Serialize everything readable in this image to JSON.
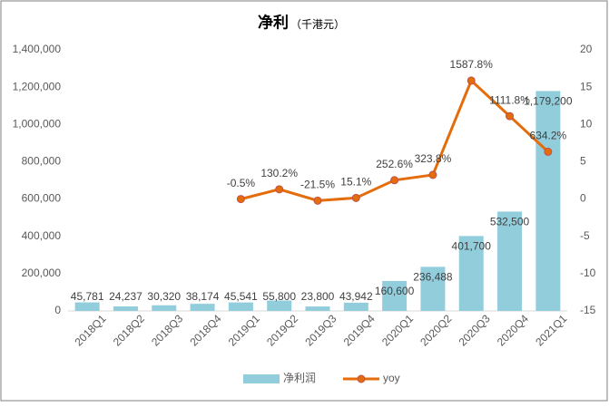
{
  "chart_data": {
    "type": "bar_line",
    "title": "净利",
    "subtitle": "（千港元）",
    "categories": [
      "2018Q1",
      "2018Q2",
      "2018Q3",
      "2018Q4",
      "2019Q1",
      "2019Q2",
      "2019Q3",
      "2019Q4",
      "2020Q1",
      "2020Q2",
      "2020Q3",
      "2020Q4",
      "2021Q1"
    ],
    "series": [
      {
        "name": "净利润",
        "type": "bar",
        "color": "#92cddc",
        "values": [
          45781,
          24237,
          30320,
          38174,
          45541,
          55800,
          23800,
          43942,
          160600,
          236488,
          401700,
          532500,
          1179200
        ],
        "value_labels": [
          "45,781",
          "24,237",
          "30,320",
          "38,174",
          "45,541",
          "55,800",
          "23,800",
          "43,942",
          "160,600",
          "236,488",
          "401,700",
          "532,500",
          "1,179,200"
        ]
      },
      {
        "name": "yoy",
        "type": "line",
        "axis": "y2",
        "color": "#e46c0a",
        "values": [
          null,
          null,
          null,
          null,
          -0.005,
          1.302,
          -0.215,
          0.151,
          2.526,
          3.238,
          15.878,
          11.118,
          6.342
        ],
        "value_labels": [
          null,
          null,
          null,
          null,
          "-0.5%",
          "130.2%",
          "-21.5%",
          "15.1%",
          "252.6%",
          "323.8%",
          "1587.8%",
          "1111.8%",
          "634.2%"
        ]
      }
    ],
    "ylim": [
      0,
      1400000
    ],
    "yticks": [
      0,
      {
        "value": 200000,
        "label": "200,000"
      },
      {
        "value": 400000,
        "label": "400,000"
      },
      {
        "value": 600000,
        "label": "600,000"
      },
      {
        "value": 800000,
        "label": "800,000"
      },
      {
        "value": 1000000,
        "label": "1,000,000"
      },
      {
        "value": 1200000,
        "label": "1,200,000"
      },
      {
        "value": 1400000,
        "label": "1,400,000"
      }
    ],
    "y2lim": [
      -15,
      20
    ],
    "y2ticks": [
      -15,
      -10,
      -5,
      0,
      5,
      10,
      15,
      20
    ],
    "legend": "bottom"
  }
}
